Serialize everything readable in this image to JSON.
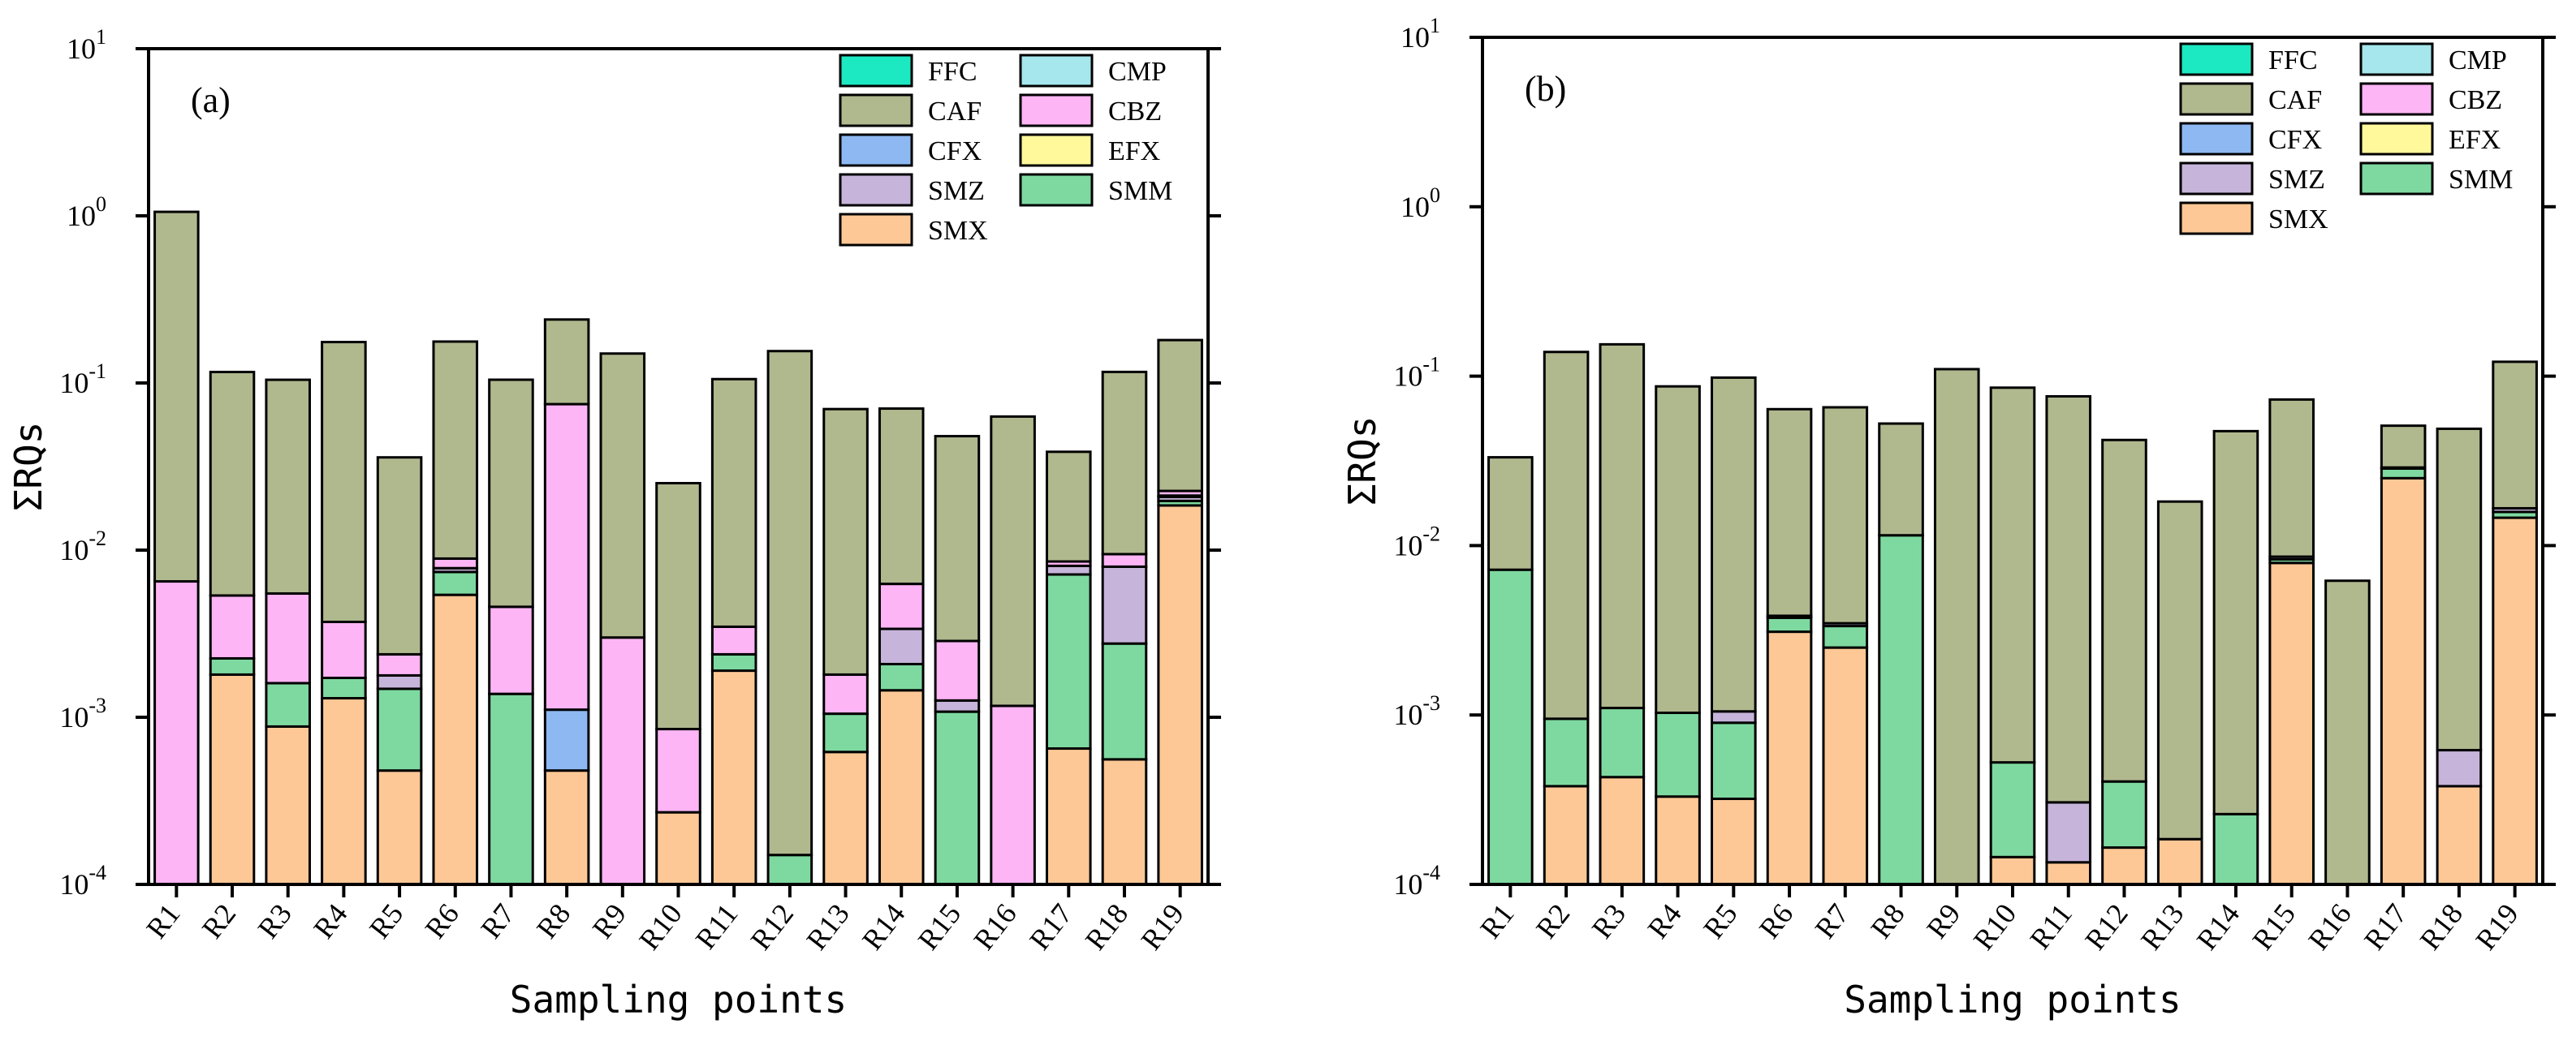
{
  "chart_data": [
    {
      "type": "bar",
      "stacked": true,
      "yscale": "log",
      "panel_label": "(a)",
      "xlabel": "Sampling points",
      "ylabel": "ΣRQs",
      "ylim": [
        0.0001,
        10
      ],
      "y_ticks": [
        {
          "value": 0.0001,
          "base": "10",
          "exp": "-4"
        },
        {
          "value": 0.001,
          "base": "10",
          "exp": "-3"
        },
        {
          "value": 0.01,
          "base": "10",
          "exp": "-2"
        },
        {
          "value": 0.1,
          "base": "10",
          "exp": "-1"
        },
        {
          "value": 1,
          "base": "10",
          "exp": "0"
        },
        {
          "value": 10,
          "base": "10",
          "exp": "1"
        }
      ],
      "legend_position": "top-right",
      "categories": [
        "R1",
        "R2",
        "R3",
        "R4",
        "R5",
        "R6",
        "R7",
        "R8",
        "R9",
        "R10",
        "R11",
        "R12",
        "R13",
        "R14",
        "R15",
        "R16",
        "R17",
        "R18",
        "R19"
      ],
      "series": [
        {
          "name": "SMX",
          "color": "#FDC896",
          "values": [
            0,
            0.0018,
            0.00088,
            0.0013,
            0.00048,
            0.0054,
            0,
            0.00048,
            0,
            0.00027,
            0.0019,
            0,
            0.00062,
            0.00145,
            0,
            0,
            0.00065,
            0.00056,
            0.0185
          ]
        },
        {
          "name": "SMM",
          "color": "#7ED9A0",
          "values": [
            0,
            0.00045,
            0.00072,
            0.00042,
            0.001,
            0.002,
            0.00138,
            0,
            0,
            0,
            0.00048,
            0.00015,
            0.00043,
            0.00063,
            0.00108,
            0,
            0.0065,
            0.0022,
            0.0012
          ]
        },
        {
          "name": "SMZ",
          "color": "#C6B4DA",
          "values": [
            0,
            0,
            0,
            0,
            0.0003,
            0.0004,
            0,
            0,
            0,
            0,
            0,
            0,
            0,
            0.0013,
            0.00018,
            0,
            0.0009,
            0.0052,
            0.0011
          ]
        },
        {
          "name": "CFX",
          "color": "#8DB8F2",
          "values": [
            0,
            0,
            0,
            0,
            0,
            0,
            0,
            0.00063,
            0,
            0,
            0,
            0,
            0,
            0,
            0,
            0,
            0,
            0,
            0
          ]
        },
        {
          "name": "EFX",
          "color": "#FFF99B",
          "values": [
            0,
            0,
            0,
            0,
            0,
            0,
            0,
            0,
            0,
            0,
            0,
            0,
            0,
            0,
            0,
            0,
            0,
            0,
            0.0004
          ]
        },
        {
          "name": "CBZ",
          "color": "#FDB5F5",
          "values": [
            0.0065,
            0.0031,
            0.0039,
            0.002,
            0.0006,
            0.0011,
            0.0032,
            0.0736,
            0.003,
            0.00058,
            0.0011,
            0,
            0.00075,
            0.0029,
            0.0016,
            0.00117,
            0.0005,
            0.0015,
            0.0014
          ]
        },
        {
          "name": "CMP",
          "color": "#A6E6ED",
          "values": [
            0,
            0,
            0,
            0,
            0,
            0,
            0,
            0,
            0,
            0,
            0,
            0,
            0,
            0,
            0,
            0,
            0,
            0,
            0
          ]
        },
        {
          "name": "CAF",
          "color": "#B0B88E",
          "values": [
            1.05,
            0.111,
            0.099,
            0.172,
            0.0335,
            0.168,
            0.1,
            0.165,
            0.147,
            0.0243,
            0.102,
            0.155,
            0.068,
            0.064,
            0.0452,
            0.0618,
            0.0302,
            0.107,
            0.158
          ]
        },
        {
          "name": "FFC",
          "color": "#1CE8C2",
          "values": [
            0,
            0,
            0,
            0,
            0,
            0,
            0,
            0,
            0,
            0,
            0,
            0,
            0,
            0,
            0,
            0,
            0,
            0,
            0
          ]
        }
      ]
    },
    {
      "type": "bar",
      "stacked": true,
      "yscale": "log",
      "panel_label": "(b)",
      "xlabel": "Sampling points",
      "ylabel": "ΣRQs",
      "ylim": [
        0.0001,
        10
      ],
      "y_ticks": [
        {
          "value": 0.0001,
          "base": "10",
          "exp": "-4"
        },
        {
          "value": 0.001,
          "base": "10",
          "exp": "-3"
        },
        {
          "value": 0.01,
          "base": "10",
          "exp": "-2"
        },
        {
          "value": 0.1,
          "base": "10",
          "exp": "-1"
        },
        {
          "value": 1,
          "base": "10",
          "exp": "0"
        },
        {
          "value": 10,
          "base": "10",
          "exp": "1"
        }
      ],
      "legend_position": "top-right",
      "categories": [
        "R1",
        "R2",
        "R3",
        "R4",
        "R5",
        "R6",
        "R7",
        "R8",
        "R9",
        "R10",
        "R11",
        "R12",
        "R13",
        "R14",
        "R15",
        "R16",
        "R17",
        "R18",
        "R19"
      ],
      "series": [
        {
          "name": "SMX",
          "color": "#FDC896",
          "values": [
            0,
            0.00038,
            0.00043,
            0.00033,
            0.00032,
            0.0031,
            0.0025,
            0,
            0,
            0.000145,
            0.000135,
            0.000165,
            0.000185,
            0,
            0.0079,
            0,
            0.025,
            0.00038,
            0.0146
          ]
        },
        {
          "name": "SMM",
          "color": "#7ED9A0",
          "values": [
            0.0072,
            0.00057,
            0.00067,
            0.0007,
            0.00058,
            0.00065,
            0.00085,
            0.0115,
            0,
            0.00038,
            0,
            0.00024,
            0,
            0.00026,
            0.0004,
            0,
            0.0035,
            0,
            0.0012
          ]
        },
        {
          "name": "SMZ",
          "color": "#C6B4DA",
          "values": [
            0,
            0,
            0,
            0,
            0.00015,
            0.0001,
            0.00013,
            0,
            0,
            0,
            0.00017,
            0,
            0,
            0,
            0.0003,
            0,
            0.0004,
            0.00024,
            0.0008
          ]
        },
        {
          "name": "CFX",
          "color": "#8DB8F2",
          "values": [
            0,
            0,
            0,
            0,
            0,
            0,
            0,
            0,
            0,
            0,
            0,
            0,
            0,
            0,
            0,
            0,
            0,
            0,
            0
          ]
        },
        {
          "name": "EFX",
          "color": "#FFF99B",
          "values": [
            0,
            0,
            0,
            0,
            0,
            0,
            0,
            0,
            0,
            0,
            0,
            0,
            0,
            0,
            0,
            0,
            0,
            0,
            0
          ]
        },
        {
          "name": "CBZ",
          "color": "#FDB5F5",
          "values": [
            0,
            0,
            0,
            0,
            0,
            0,
            0,
            0,
            0,
            0,
            0,
            0,
            0,
            0,
            0,
            0,
            0,
            0,
            0
          ]
        },
        {
          "name": "CMP",
          "color": "#A6E6ED",
          "values": [
            0,
            0,
            0,
            0,
            0,
            0,
            0,
            0,
            0,
            0,
            0,
            0,
            0,
            0,
            0,
            0,
            0,
            0,
            0
          ]
        },
        {
          "name": "CAF",
          "color": "#B0B88E",
          "values": [
            0.026,
            0.138,
            0.153,
            0.086,
            0.097,
            0.06,
            0.062,
            0.041,
            0.11,
            0.085,
            0.0757,
            0.0416,
            0.018,
            0.0471,
            0.0642,
            0.0062,
            0.0221,
            0.0483,
            0.105
          ]
        },
        {
          "name": "FFC",
          "color": "#1CE8C2",
          "values": [
            0,
            0,
            0,
            0,
            0,
            0,
            0,
            0,
            0,
            0,
            0,
            0,
            0,
            0,
            0,
            0,
            0,
            0,
            0
          ]
        }
      ]
    }
  ],
  "legend_entries": [
    {
      "name": "FFC",
      "color": "#1CE8C2"
    },
    {
      "name": "CMP",
      "color": "#A6E6ED"
    },
    {
      "name": "CAF",
      "color": "#B0B88E"
    },
    {
      "name": "CBZ",
      "color": "#FDB5F5"
    },
    {
      "name": "CFX",
      "color": "#8DB8F2"
    },
    {
      "name": "EFX",
      "color": "#FFF99B"
    },
    {
      "name": "SMZ",
      "color": "#C6B4DA"
    },
    {
      "name": "SMM",
      "color": "#7ED9A0"
    },
    {
      "name": "SMX",
      "color": "#FDC896"
    }
  ]
}
